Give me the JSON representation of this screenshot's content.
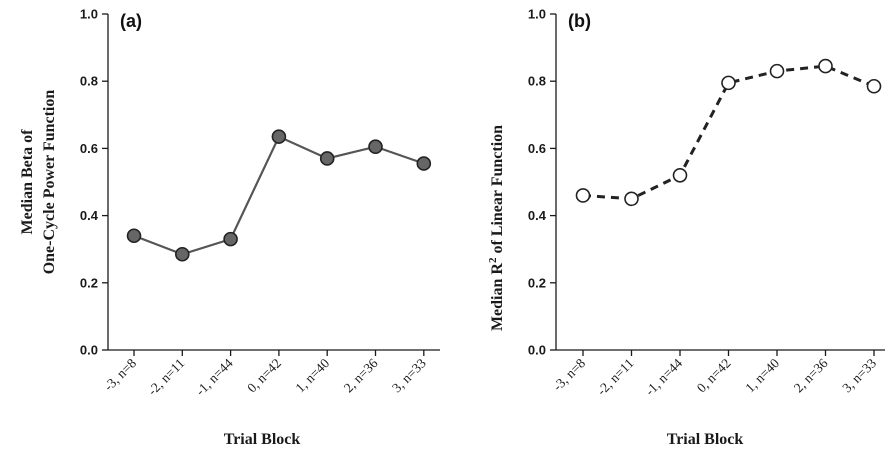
{
  "chart_data": [
    {
      "type": "line",
      "panel_label": "(a)",
      "categories": [
        "-3, n=8",
        "-2, n=11",
        "-1, n=44",
        "0, n=42",
        "1, n=40",
        "2, n=36",
        "3, n=33"
      ],
      "values": [
        0.34,
        0.285,
        0.33,
        0.635,
        0.57,
        0.605,
        0.555
      ],
      "xlabel": "Trial Block",
      "ylabel_lines": [
        "Median Beta of",
        "One-Cycle Power Function"
      ],
      "ylim": [
        0.0,
        1.0
      ],
      "yticks": [
        "0.0",
        "0.2",
        "0.4",
        "0.6",
        "0.8",
        "1.0"
      ],
      "marker": "filled-circle",
      "line_style": "solid",
      "line_color": "#555555",
      "marker_fill": "#666666"
    },
    {
      "type": "line",
      "panel_label": "(b)",
      "categories": [
        "-3, n=8",
        "-2, n=11",
        "-1, n=44",
        "0, n=42",
        "1, n=40",
        "2, n=36",
        "3, n=33"
      ],
      "values": [
        0.46,
        0.45,
        0.52,
        0.795,
        0.83,
        0.845,
        0.785
      ],
      "xlabel": "Trial Block",
      "ylabel_lines": [
        "Median R",
        "2",
        " of Linear Function"
      ],
      "ylim": [
        0.0,
        1.0
      ],
      "yticks": [
        "0.0",
        "0.2",
        "0.4",
        "0.6",
        "0.8",
        "1.0"
      ],
      "marker": "open-circle",
      "line_style": "dashed",
      "line_color": "#222222",
      "marker_fill": "#ffffff"
    }
  ]
}
